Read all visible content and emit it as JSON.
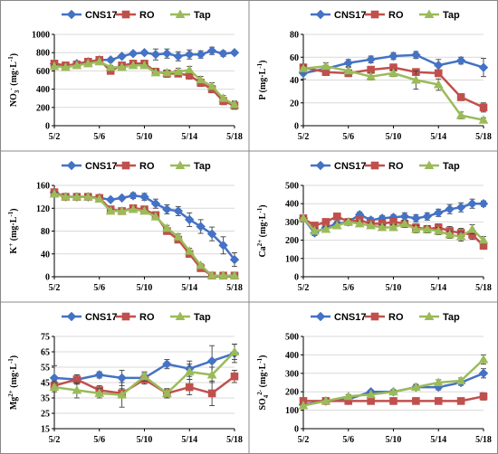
{
  "colors": {
    "CNS17": "#4472C4",
    "RO": "#C0504D",
    "Tap": "#9BBB59"
  },
  "legend": [
    "CNS17",
    "RO",
    "Tap"
  ],
  "chart_data": [
    {
      "type": "line",
      "ylabel_main": "NO",
      "ylabel_sub": "3",
      "ylabel_sup": "-",
      "ylabel_unit": " (mg·L",
      "ylabel_unit_sup": "-1",
      "ylabel_tail": ")",
      "ylim": [
        0,
        1000
      ],
      "yticks": [
        0,
        200,
        400,
        600,
        800,
        1000
      ],
      "x_ticks": [
        "5/2",
        "5/6",
        "5/10",
        "5/14",
        "5/18"
      ],
      "series": [
        {
          "name": "CNS17",
          "x": [
            2,
            3,
            4,
            5,
            6,
            7,
            8,
            9,
            10,
            11,
            12,
            13,
            14,
            15,
            16,
            17,
            18
          ],
          "y": [
            680,
            650,
            680,
            700,
            720,
            720,
            760,
            790,
            800,
            780,
            790,
            760,
            780,
            780,
            820,
            790,
            800
          ],
          "err": [
            20,
            20,
            15,
            15,
            15,
            20,
            20,
            20,
            20,
            60,
            50,
            50,
            50,
            40,
            40,
            30,
            20
          ]
        },
        {
          "name": "RO",
          "x": [
            2,
            3,
            4,
            5,
            6,
            7,
            8,
            9,
            10,
            11,
            12,
            13,
            14,
            15,
            16,
            17,
            18
          ],
          "y": [
            680,
            660,
            670,
            700,
            720,
            600,
            660,
            680,
            680,
            590,
            570,
            570,
            550,
            470,
            400,
            270,
            220
          ],
          "err": [
            20,
            20,
            15,
            15,
            15,
            30,
            20,
            20,
            30,
            40,
            40,
            30,
            40,
            40,
            40,
            40,
            40
          ]
        },
        {
          "name": "Tap",
          "x": [
            2,
            3,
            4,
            5,
            6,
            7,
            8,
            9,
            10,
            11,
            12,
            13,
            14,
            15,
            16,
            17,
            18
          ],
          "y": [
            650,
            640,
            660,
            680,
            700,
            640,
            640,
            660,
            660,
            580,
            580,
            590,
            610,
            500,
            430,
            300,
            230
          ],
          "err": [
            20,
            20,
            15,
            15,
            15,
            20,
            20,
            20,
            20,
            30,
            30,
            40,
            40,
            40,
            40,
            30,
            40
          ]
        }
      ]
    },
    {
      "type": "line",
      "ylabel_main": "P",
      "ylabel_sub": "",
      "ylabel_sup": "",
      "ylabel_unit": " (mg·L",
      "ylabel_unit_sup": "-1",
      "ylabel_tail": ")",
      "ylim": [
        0,
        80
      ],
      "yticks": [
        0,
        20,
        40,
        60,
        80
      ],
      "x_ticks": [
        "5/2",
        "5/6",
        "5/10",
        "5/14",
        "5/18"
      ],
      "series": [
        {
          "name": "CNS17",
          "x": [
            2,
            4,
            6,
            8,
            10,
            12,
            14,
            16,
            18
          ],
          "y": [
            46,
            50,
            55,
            58,
            61,
            62,
            53,
            57,
            51
          ],
          "err": [
            5,
            3,
            3,
            3,
            3,
            3,
            5,
            3,
            8
          ]
        },
        {
          "name": "RO",
          "x": [
            2,
            4,
            6,
            8,
            10,
            12,
            14,
            16,
            18
          ],
          "y": [
            51,
            47,
            46,
            49,
            51,
            47,
            46,
            25,
            16
          ],
          "err": [
            3,
            3,
            3,
            3,
            3,
            3,
            3,
            3,
            4
          ]
        },
        {
          "name": "Tap",
          "x": [
            2,
            4,
            6,
            8,
            10,
            12,
            14,
            16,
            18
          ],
          "y": [
            50,
            52,
            48,
            43,
            46,
            40,
            36,
            9,
            5
          ],
          "err": [
            3,
            3,
            3,
            3,
            3,
            8,
            5,
            3,
            2
          ]
        }
      ]
    },
    {
      "type": "line",
      "ylabel_main": "K",
      "ylabel_sub": "",
      "ylabel_sup": "+",
      "ylabel_unit": " (mg·L",
      "ylabel_unit_sup": "-1",
      "ylabel_tail": ")",
      "ylim": [
        0,
        160
      ],
      "yticks": [
        0,
        40,
        80,
        120,
        160
      ],
      "x_ticks": [
        "5/2",
        "5/6",
        "5/10",
        "5/14",
        "5/18"
      ],
      "series": [
        {
          "name": "CNS17",
          "x": [
            2,
            3,
            4,
            5,
            6,
            7,
            8,
            9,
            10,
            11,
            12,
            13,
            14,
            15,
            16,
            17,
            18
          ],
          "y": [
            148,
            140,
            140,
            140,
            138,
            135,
            138,
            142,
            140,
            128,
            118,
            115,
            100,
            88,
            75,
            55,
            30
          ],
          "err": [
            3,
            3,
            3,
            3,
            3,
            3,
            3,
            5,
            6,
            8,
            8,
            8,
            12,
            12,
            12,
            15,
            12
          ]
        },
        {
          "name": "RO",
          "x": [
            2,
            3,
            4,
            5,
            6,
            7,
            8,
            9,
            10,
            11,
            12,
            13,
            14,
            15,
            16,
            17,
            18
          ],
          "y": [
            148,
            140,
            140,
            140,
            138,
            118,
            115,
            120,
            118,
            108,
            80,
            65,
            40,
            15,
            2,
            2,
            2
          ],
          "err": [
            3,
            3,
            3,
            3,
            3,
            3,
            3,
            3,
            3,
            3,
            5,
            5,
            5,
            3,
            2,
            2,
            2
          ]
        },
        {
          "name": "Tap",
          "x": [
            2,
            3,
            4,
            5,
            6,
            7,
            8,
            9,
            10,
            11,
            12,
            13,
            14,
            15,
            16,
            17,
            18
          ],
          "y": [
            145,
            140,
            140,
            140,
            136,
            115,
            115,
            118,
            115,
            105,
            85,
            70,
            45,
            20,
            2,
            2,
            2
          ],
          "err": [
            3,
            3,
            3,
            3,
            3,
            3,
            3,
            3,
            3,
            3,
            5,
            5,
            5,
            3,
            2,
            2,
            2
          ]
        }
      ]
    },
    {
      "type": "line",
      "ylabel_main": "Ca",
      "ylabel_sub": "",
      "ylabel_sup": "2+",
      "ylabel_unit": " (mg·L",
      "ylabel_unit_sup": "-1",
      "ylabel_tail": ")",
      "ylim": [
        0,
        500
      ],
      "yticks": [
        0,
        100,
        200,
        300,
        400,
        500
      ],
      "x_ticks": [
        "5/2",
        "5/6",
        "5/10",
        "5/14",
        "5/18"
      ],
      "series": [
        {
          "name": "CNS17",
          "x": [
            2,
            3,
            4,
            5,
            6,
            7,
            8,
            9,
            10,
            11,
            12,
            13,
            14,
            15,
            16,
            17,
            18
          ],
          "y": [
            320,
            240,
            270,
            290,
            300,
            340,
            310,
            320,
            325,
            330,
            320,
            330,
            350,
            370,
            380,
            400,
            400
          ],
          "err": [
            10,
            15,
            15,
            15,
            15,
            15,
            15,
            15,
            15,
            20,
            20,
            20,
            20,
            25,
            25,
            25,
            15
          ]
        },
        {
          "name": "RO",
          "x": [
            2,
            3,
            4,
            5,
            6,
            7,
            8,
            9,
            10,
            11,
            12,
            13,
            14,
            15,
            16,
            17,
            18
          ],
          "y": [
            320,
            280,
            300,
            330,
            300,
            310,
            290,
            290,
            300,
            290,
            270,
            260,
            270,
            250,
            240,
            230,
            170
          ],
          "err": [
            10,
            15,
            15,
            15,
            15,
            15,
            15,
            20,
            20,
            20,
            20,
            20,
            20,
            25,
            25,
            25,
            20
          ]
        },
        {
          "name": "Tap",
          "x": [
            2,
            3,
            4,
            5,
            6,
            7,
            8,
            9,
            10,
            11,
            12,
            13,
            14,
            15,
            16,
            17,
            18
          ],
          "y": [
            320,
            250,
            260,
            280,
            300,
            290,
            280,
            270,
            270,
            290,
            260,
            260,
            250,
            230,
            220,
            260,
            200
          ],
          "err": [
            10,
            15,
            15,
            15,
            15,
            15,
            15,
            15,
            15,
            20,
            20,
            20,
            20,
            20,
            25,
            25,
            20
          ]
        }
      ]
    },
    {
      "type": "line",
      "ylabel_main": "Mg",
      "ylabel_sub": "",
      "ylabel_sup": "2+",
      "ylabel_unit": " (mg·L",
      "ylabel_unit_sup": "-1",
      "ylabel_tail": ")",
      "ylim": [
        15,
        75
      ],
      "yticks": [
        15,
        25,
        35,
        45,
        55,
        65,
        75
      ],
      "x_ticks": [
        "5/2",
        "5/6",
        "5/10",
        "5/14",
        "5/18"
      ],
      "series": [
        {
          "name": "CNS17",
          "x": [
            2,
            4,
            6,
            8,
            10,
            12,
            14,
            16,
            18
          ],
          "y": [
            48,
            47,
            50,
            48,
            48,
            57,
            54,
            59,
            64
          ],
          "err": [
            8,
            3,
            2,
            5,
            3,
            3,
            5,
            10,
            6
          ]
        },
        {
          "name": "RO",
          "x": [
            2,
            4,
            6,
            8,
            10,
            12,
            14,
            16,
            18
          ],
          "y": [
            43,
            47,
            40,
            38,
            47,
            38,
            42,
            38,
            49
          ],
          "err": [
            3,
            3,
            3,
            3,
            3,
            3,
            5,
            8,
            4
          ]
        },
        {
          "name": "Tap",
          "x": [
            2,
            4,
            6,
            8,
            10,
            12,
            14,
            16,
            18
          ],
          "y": [
            42,
            40,
            38,
            37,
            49,
            38,
            52,
            50,
            65
          ],
          "err": [
            3,
            5,
            3,
            8,
            3,
            3,
            5,
            5,
            5
          ]
        }
      ]
    },
    {
      "type": "line",
      "ylabel_main": "SO",
      "ylabel_sub": "4",
      "ylabel_sup": "2-",
      "ylabel_unit": " (mg·L",
      "ylabel_unit_sup": "-1",
      "ylabel_tail": ")",
      "ylim": [
        0,
        500
      ],
      "yticks": [
        0,
        100,
        200,
        300,
        400,
        500
      ],
      "x_ticks": [
        "5/2",
        "5/6",
        "5/10",
        "5/14",
        "5/18"
      ],
      "series": [
        {
          "name": "CNS17",
          "x": [
            2,
            4,
            6,
            8,
            10,
            12,
            14,
            16,
            18
          ],
          "y": [
            130,
            150,
            160,
            200,
            200,
            225,
            225,
            250,
            300
          ],
          "err": [
            10,
            10,
            10,
            10,
            10,
            15,
            15,
            15,
            25
          ]
        },
        {
          "name": "RO",
          "x": [
            2,
            4,
            6,
            8,
            10,
            12,
            14,
            16,
            18
          ],
          "y": [
            150,
            150,
            150,
            150,
            150,
            150,
            150,
            150,
            175
          ],
          "err": [
            10,
            10,
            10,
            10,
            10,
            10,
            10,
            10,
            20
          ]
        },
        {
          "name": "Tap",
          "x": [
            2,
            4,
            6,
            8,
            10,
            12,
            14,
            16,
            18
          ],
          "y": [
            125,
            150,
            175,
            185,
            200,
            225,
            250,
            260,
            375
          ],
          "err": [
            10,
            10,
            10,
            10,
            10,
            15,
            15,
            15,
            25
          ]
        }
      ]
    }
  ]
}
